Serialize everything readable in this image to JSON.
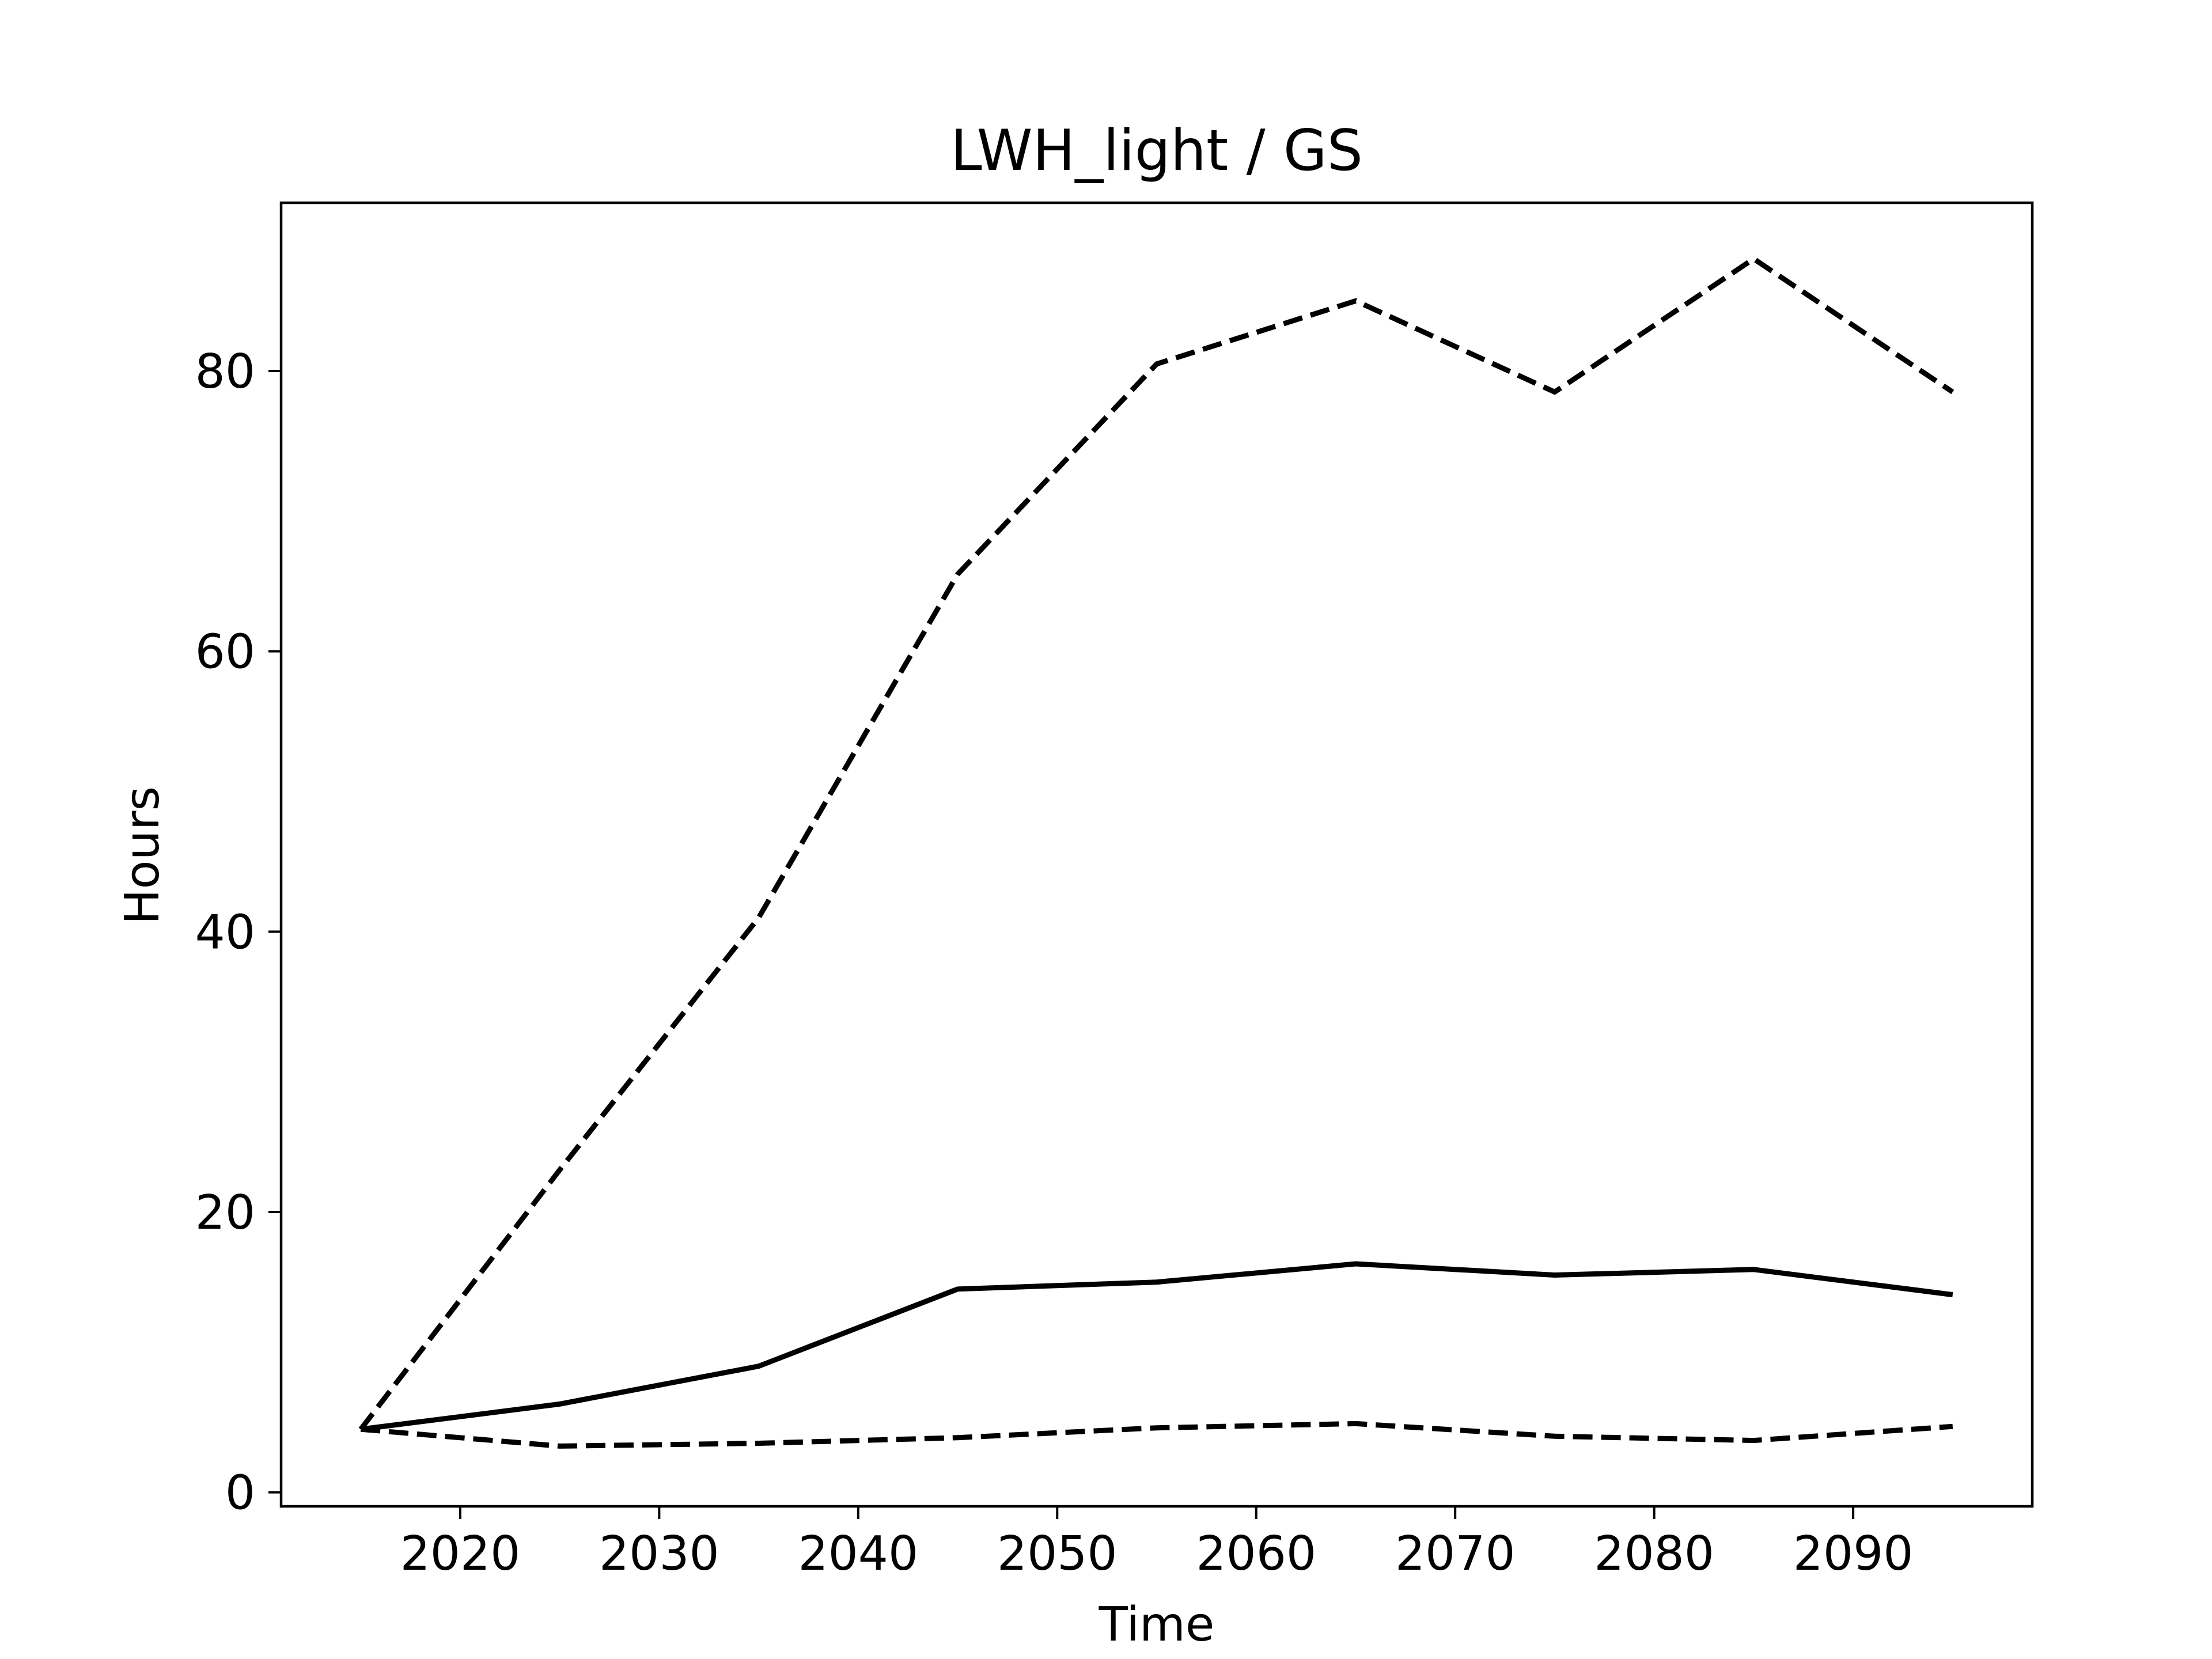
{
  "chart_data": {
    "type": "line",
    "title": "LWH_light / GS",
    "xlabel": "Time",
    "ylabel": "Hours",
    "xlim": [
      2011,
      2099
    ],
    "ylim": [
      -1,
      92
    ],
    "xticks": [
      2020,
      2030,
      2040,
      2050,
      2060,
      2070,
      2080,
      2090
    ],
    "yticks": [
      0,
      20,
      40,
      60,
      80
    ],
    "grid": false,
    "legend": "none",
    "x": [
      2015,
      2025,
      2035,
      2045,
      2055,
      2065,
      2075,
      2085,
      2095
    ],
    "series": [
      {
        "style": "dashed",
        "color": "#000000",
        "values": [
          4.5,
          23.0,
          41.0,
          65.5,
          80.5,
          85.0,
          78.5,
          88.0,
          78.5
        ]
      },
      {
        "style": "solid",
        "color": "#000000",
        "values": [
          4.5,
          6.3,
          9.0,
          14.5,
          15.0,
          16.3,
          15.5,
          15.9,
          14.1
        ]
      },
      {
        "style": "dashed",
        "color": "#000000",
        "values": [
          4.5,
          3.3,
          3.5,
          3.9,
          4.6,
          4.9,
          4.0,
          3.7,
          4.7
        ]
      }
    ]
  }
}
